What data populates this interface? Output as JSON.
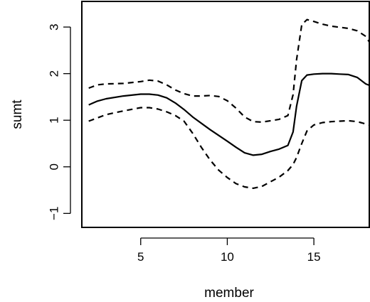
{
  "chart_data": {
    "type": "line",
    "title": "",
    "xlabel": "member",
    "ylabel": "sumt",
    "xlim": [
      1.6,
      18.2
    ],
    "ylim": [
      -1.3,
      3.55
    ],
    "xticks": [
      5,
      10,
      15
    ],
    "yticks": [
      -1,
      0,
      1,
      2,
      3
    ],
    "grid": false,
    "series": [
      {
        "style": "solid",
        "x": [
          2,
          2.5,
          3,
          4,
          5,
          5.5,
          6,
          6.5,
          7,
          7.5,
          8,
          9,
          10,
          10.5,
          11,
          11.5,
          12,
          12.5,
          13,
          13.5,
          13.8,
          14,
          14.3,
          14.6,
          15,
          15.5,
          16,
          16.5,
          17,
          17.5,
          18,
          18.2
        ],
        "y": [
          1.33,
          1.41,
          1.46,
          1.52,
          1.56,
          1.56,
          1.54,
          1.48,
          1.37,
          1.23,
          1.07,
          0.8,
          0.55,
          0.42,
          0.3,
          0.25,
          0.27,
          0.33,
          0.38,
          0.46,
          0.75,
          1.3,
          1.85,
          1.97,
          1.99,
          2.0,
          2.0,
          1.99,
          1.98,
          1.92,
          1.78,
          1.75
        ]
      },
      {
        "style": "dashed",
        "x": [
          2,
          2.5,
          3,
          4,
          5,
          5.5,
          6,
          6.5,
          7,
          7.5,
          8,
          8.5,
          9,
          9.5,
          10,
          10.5,
          11,
          11.5,
          12,
          12.5,
          13,
          13.5,
          13.8,
          14,
          14.3,
          14.6,
          15,
          15.5,
          16,
          17,
          17.5,
          18,
          18.2
        ],
        "y": [
          1.69,
          1.76,
          1.78,
          1.79,
          1.83,
          1.86,
          1.84,
          1.76,
          1.65,
          1.57,
          1.52,
          1.52,
          1.53,
          1.51,
          1.42,
          1.26,
          1.07,
          0.97,
          0.96,
          0.99,
          1.02,
          1.1,
          1.55,
          2.3,
          3.05,
          3.16,
          3.12,
          3.06,
          3.02,
          2.97,
          2.92,
          2.8,
          2.68
        ]
      },
      {
        "style": "dashed",
        "x": [
          2,
          2.5,
          3,
          4,
          5,
          5.5,
          6,
          6.5,
          7,
          7.5,
          8,
          8.5,
          9,
          9.5,
          10,
          10.5,
          11,
          11.5,
          12,
          12.5,
          13,
          13.5,
          13.8,
          14,
          14.3,
          14.6,
          15,
          15.5,
          16,
          16.5,
          17,
          17.5,
          18,
          18.2
        ],
        "y": [
          0.98,
          1.05,
          1.12,
          1.2,
          1.27,
          1.27,
          1.24,
          1.18,
          1.1,
          0.98,
          0.72,
          0.42,
          0.15,
          -0.07,
          -0.23,
          -0.36,
          -0.43,
          -0.46,
          -0.42,
          -0.32,
          -0.22,
          -0.08,
          0.05,
          0.2,
          0.5,
          0.77,
          0.9,
          0.95,
          0.97,
          0.98,
          0.99,
          0.97,
          0.92,
          0.9
        ]
      }
    ]
  }
}
